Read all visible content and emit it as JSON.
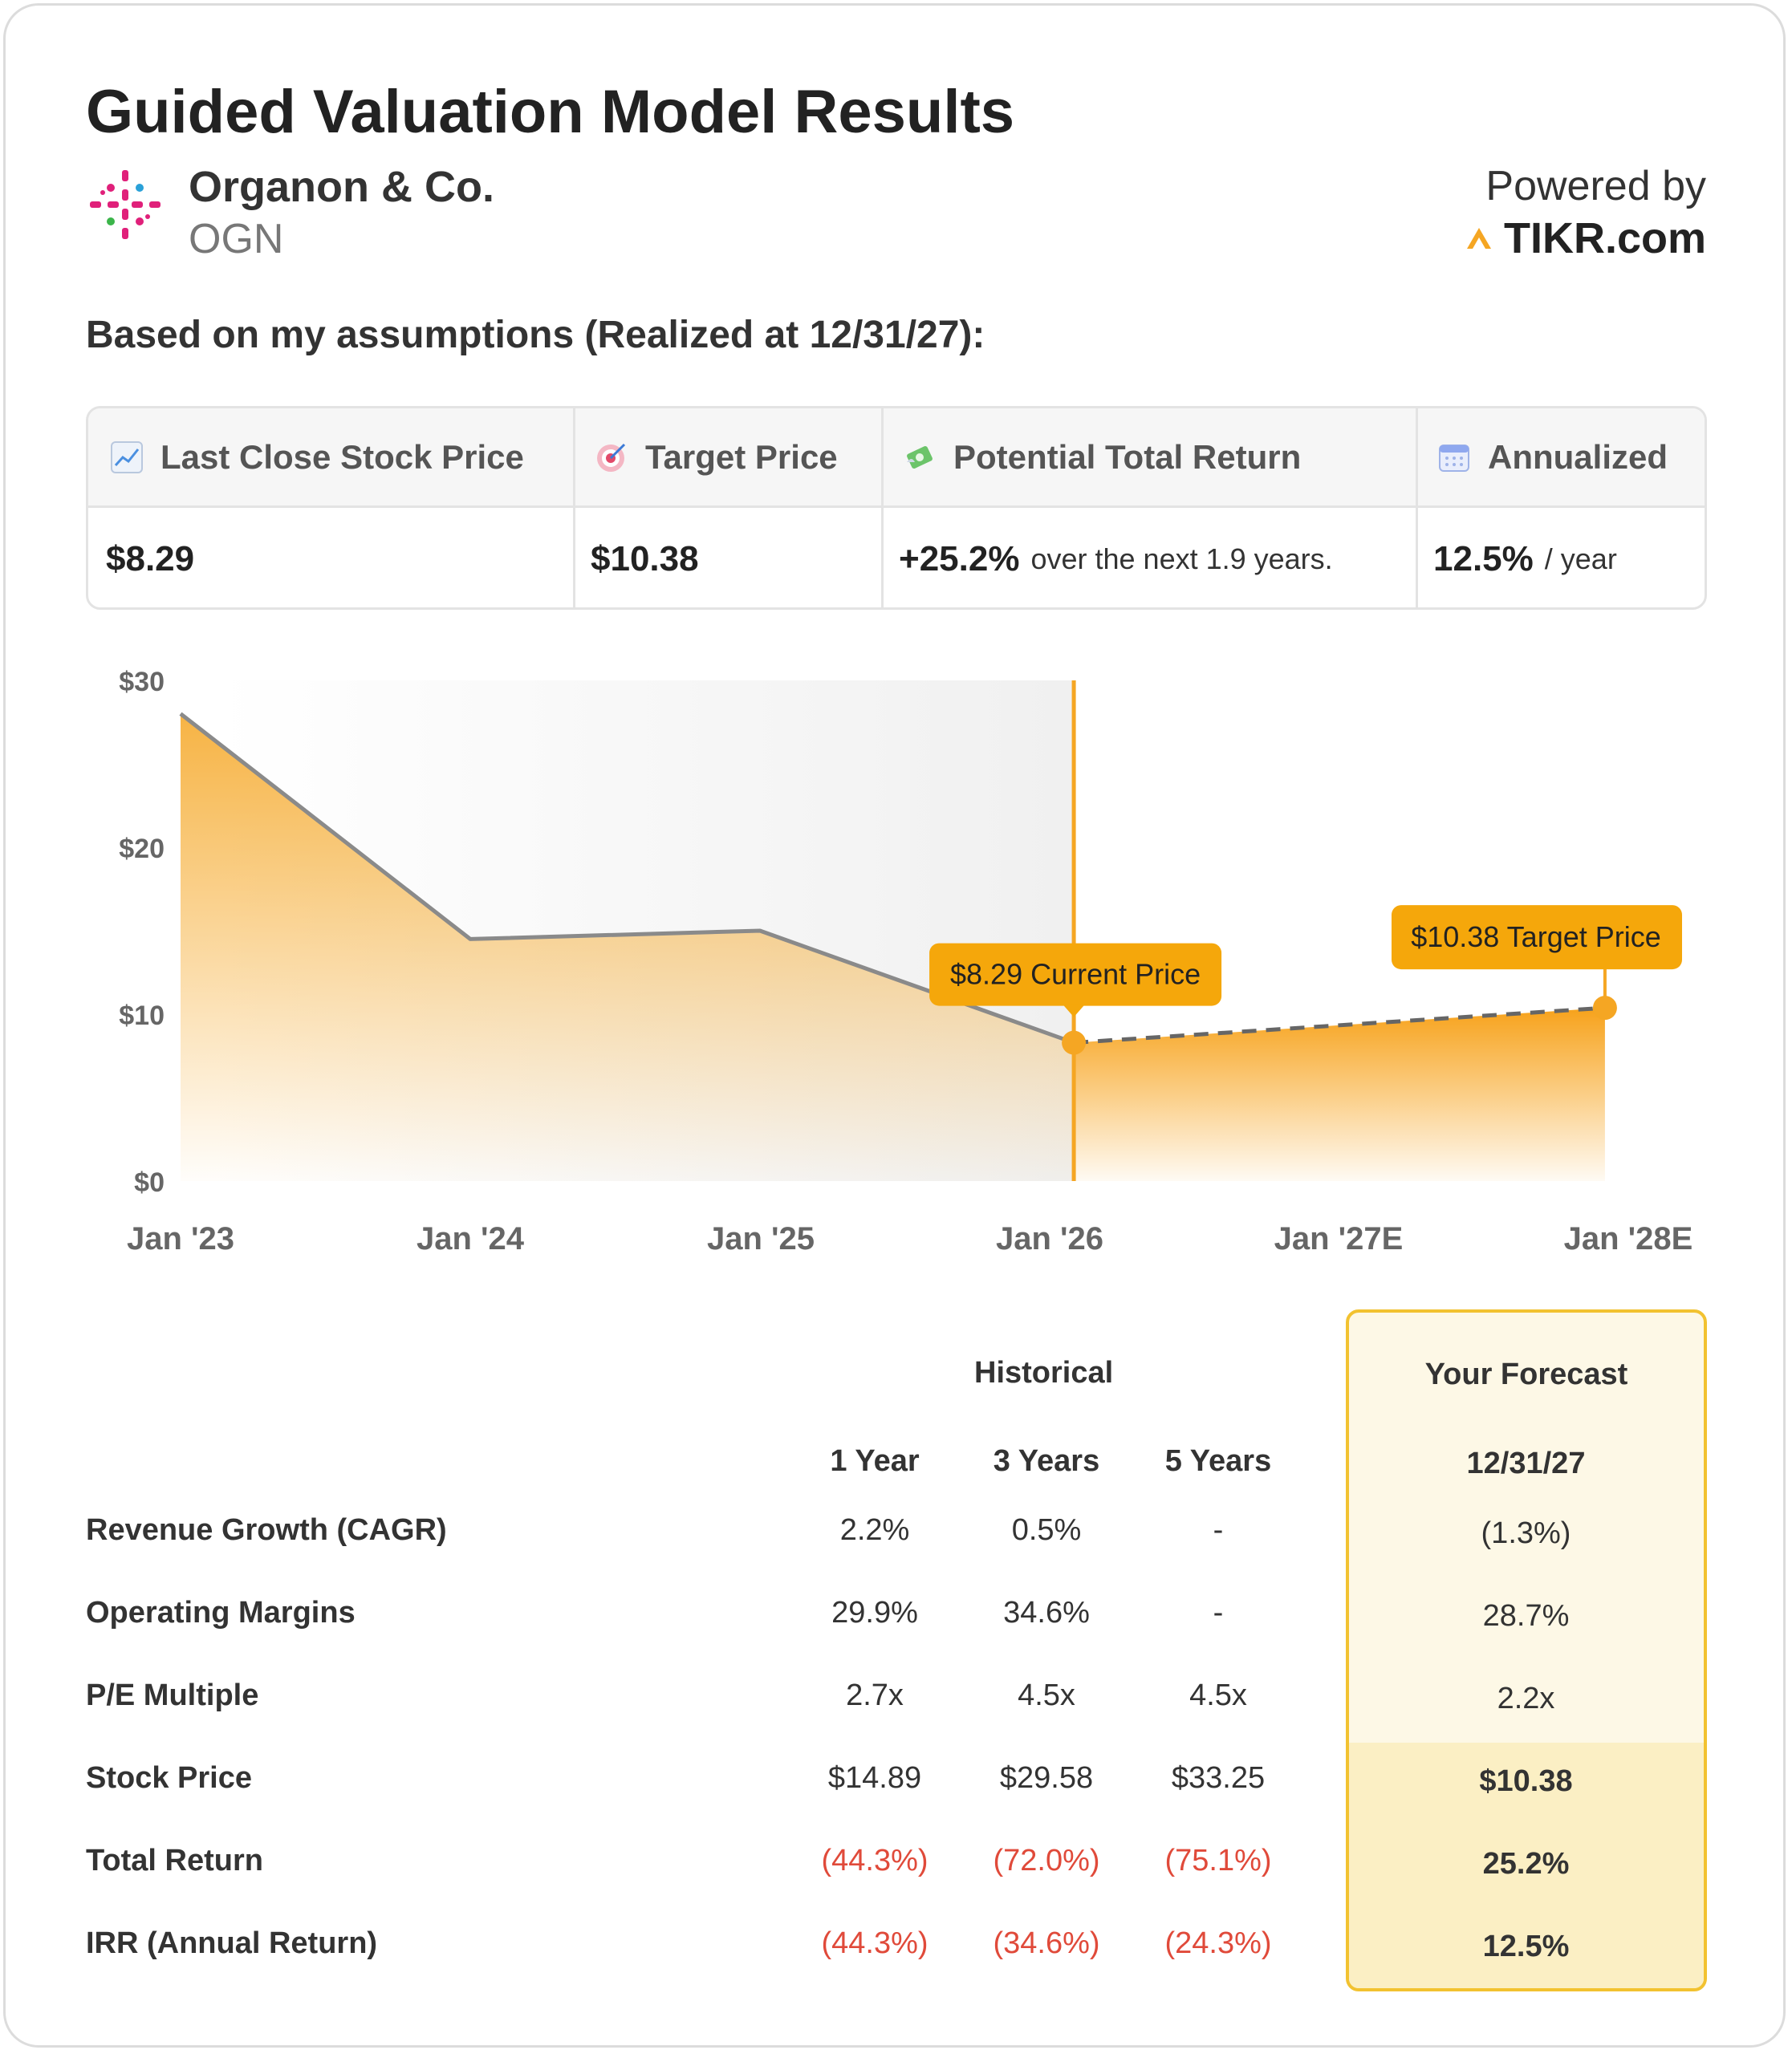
{
  "header": {
    "title": "Guided Valuation Model Results",
    "company_name": "Organon & Co.",
    "ticker": "OGN",
    "powered_by": "Powered by",
    "brand": "TIKR.com"
  },
  "subheading": "Based on my assumptions (Realized at 12/31/27):",
  "metrics": {
    "last_close_label": "Last Close Stock Price",
    "last_close_value": "$8.29",
    "target_label": "Target Price",
    "target_value": "$10.38",
    "return_label": "Potential Total Return",
    "return_value": "+25.2%",
    "return_suffix": "over the next 1.9 years.",
    "annualized_label": "Annualized",
    "annualized_value": "12.5%",
    "annualized_suffix": "/ year"
  },
  "chart_data": {
    "type": "area",
    "y_ticks": [
      "$30",
      "$20",
      "$10",
      "$0"
    ],
    "x_ticks": [
      "Jan '23",
      "Jan '24",
      "Jan '25",
      "Jan '26",
      "Jan '27E",
      "Jan '28E"
    ],
    "ylim": [
      0,
      30
    ],
    "series": [
      {
        "points": [
          {
            "x": "2023-01",
            "y": 28.0
          },
          {
            "x": "2024-01",
            "y": 14.5
          },
          {
            "x": "2025-01",
            "y": 15.0
          },
          {
            "x": "2026-02",
            "y": 8.29
          }
        ]
      },
      {
        "points": [
          {
            "x": "2026-02",
            "y": 8.29
          },
          {
            "x": "2027-12",
            "y": 10.38
          }
        ]
      }
    ],
    "annotations": [
      {
        "label": "$8.29 Current Price"
      },
      {
        "label": "$10.38 Target Price"
      }
    ],
    "colors": {
      "accent": "#f5a623",
      "line": "#8a8a8a",
      "shade": "#f2f2f2"
    }
  },
  "table": {
    "historical_header": "Historical",
    "forecast_header": "Your Forecast",
    "col_headers": [
      "1 Year",
      "3 Years",
      "5 Years"
    ],
    "forecast_date": "12/31/27",
    "rows": [
      {
        "label": "Revenue Growth (CAGR)",
        "values": [
          "2.2%",
          "0.5%",
          "-"
        ],
        "forecast": "(1.3%)"
      },
      {
        "label": "Operating Margins",
        "values": [
          "29.9%",
          "34.6%",
          "-"
        ],
        "forecast": "28.7%"
      },
      {
        "label": "P/E Multiple",
        "values": [
          "2.7x",
          "4.5x",
          "4.5x"
        ],
        "forecast": "2.2x"
      },
      {
        "label": "Stock Price",
        "values": [
          "$14.89",
          "$29.58",
          "$33.25"
        ],
        "forecast": "$10.38"
      },
      {
        "label": "Total Return",
        "values": [
          "(44.3%)",
          "(72.0%)",
          "(75.1%)"
        ],
        "forecast": "25.2%"
      },
      {
        "label": "IRR (Annual Return)",
        "values": [
          "(44.3%)",
          "(34.6%)",
          "(24.3%)"
        ],
        "forecast": "12.5%"
      }
    ]
  }
}
